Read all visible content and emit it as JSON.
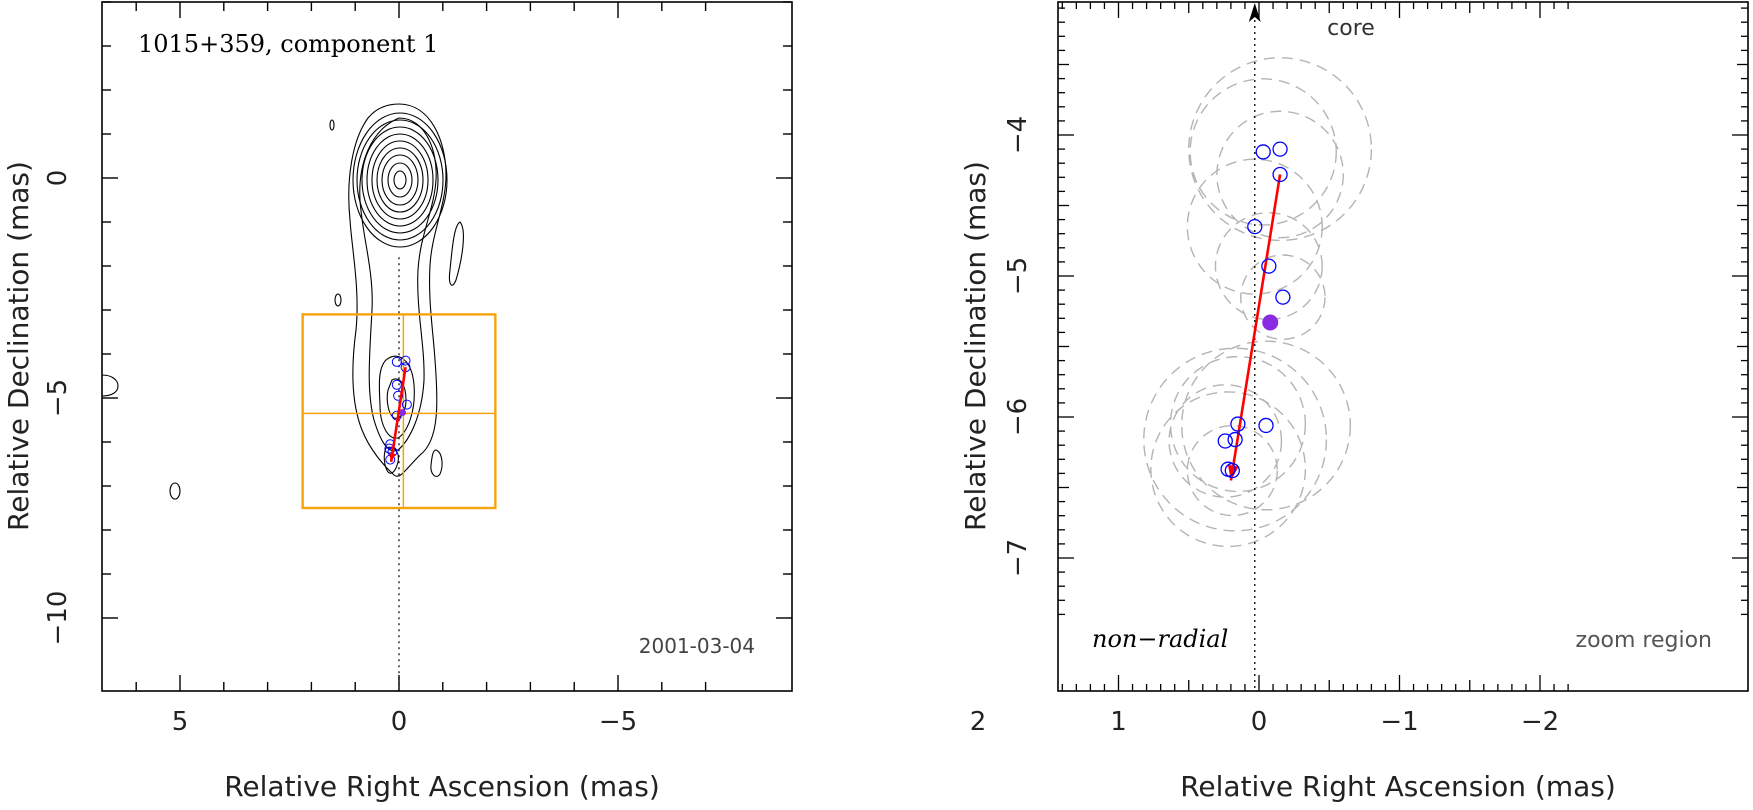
{
  "chart_data": [
    {
      "type": "contour",
      "title": "1015+359, component 1",
      "date": "2001-03-04",
      "xlabel": "Relative Right Ascension (mas)",
      "ylabel": "Relative Declination (mas)",
      "xlim": [
        7,
        -7
      ],
      "ylim": [
        -10,
        4
      ],
      "xticks": [
        5,
        0,
        -5
      ],
      "xtick_labels": [
        "5",
        "0",
        "−5"
      ],
      "yticks": [
        0,
        -5,
        -10
      ],
      "ytick_labels": [
        "0",
        "−5",
        "−10"
      ],
      "contour_center": [
        0,
        0
      ],
      "contour_levels": 10,
      "components": [
        {
          "x": 0.05,
          "y": -4.18
        },
        {
          "x": -0.15,
          "y": -4.15
        },
        {
          "x": -0.15,
          "y": -4.3
        },
        {
          "x": 0.05,
          "y": -4.7
        },
        {
          "x": 0.02,
          "y": -4.95
        },
        {
          "x": -0.18,
          "y": -5.15
        },
        {
          "x": 0.05,
          "y": -5.4
        },
        {
          "x": 0.2,
          "y": -6.05
        },
        {
          "x": 0.22,
          "y": -6.15
        },
        {
          "x": 0.15,
          "y": -6.22
        },
        {
          "x": 0.2,
          "y": -6.4
        }
      ],
      "highlight_component": {
        "x": -0.08,
        "y": -5.33
      },
      "motion_vector": {
        "from": [
          -0.15,
          -4.3
        ],
        "to": [
          0.18,
          -6.45
        ]
      },
      "zoom_box": {
        "x": [
          2.2,
          -2.2
        ],
        "y": [
          -3.1,
          -7.5
        ],
        "cross": {
          "x": -0.1,
          "y": -5.35
        }
      },
      "core_direction_line": {
        "x": 0
      }
    },
    {
      "type": "scatter",
      "title": "",
      "annotations": [
        "core",
        "non−radial",
        "zoom region"
      ],
      "xlabel": "Relative Right Ascension (mas)",
      "ylabel": "Relative Declination (mas)",
      "xlim": [
        2.25,
        -2.1
      ],
      "ylim": [
        -7.45,
        -3.0
      ],
      "xticks": [
        2,
        1,
        0,
        -1,
        -2
      ],
      "xtick_labels": [
        "2",
        "1",
        "0",
        "−1",
        "−2"
      ],
      "yticks": [
        -4,
        -5,
        -6,
        -7
      ],
      "ytick_labels": [
        "−4",
        "−5",
        "−6",
        "−7"
      ],
      "series": [
        {
          "marker": "open-circle",
          "color": "#0000ff",
          "points": [
            {
              "x": -0.03,
              "y": -4.12
            },
            {
              "x": -0.15,
              "y": -4.1
            },
            {
              "x": -0.15,
              "y": -4.28
            },
            {
              "x": 0.03,
              "y": -4.65
            },
            {
              "x": -0.07,
              "y": -4.93
            },
            {
              "x": -0.17,
              "y": -5.15
            },
            {
              "x": -0.05,
              "y": -6.06
            },
            {
              "x": 0.15,
              "y": -6.05
            },
            {
              "x": 0.17,
              "y": -6.16
            },
            {
              "x": 0.24,
              "y": -6.17
            },
            {
              "x": 0.22,
              "y": -6.37
            },
            {
              "x": 0.19,
              "y": -6.38
            }
          ]
        },
        {
          "marker": "filled-circle",
          "color": "#8a2be2",
          "points": [
            {
              "x": -0.08,
              "y": -5.33
            }
          ]
        }
      ],
      "uncertainty_circles": [
        {
          "x": -0.03,
          "y": -4.12,
          "r": 0.52
        },
        {
          "x": -0.15,
          "y": -4.1,
          "r": 0.65
        },
        {
          "x": -0.15,
          "y": -4.28,
          "r": 0.45
        },
        {
          "x": 0.03,
          "y": -4.65,
          "r": 0.48
        },
        {
          "x": -0.07,
          "y": -4.93,
          "r": 0.38
        },
        {
          "x": -0.17,
          "y": -5.15,
          "r": 0.3
        },
        {
          "x": -0.05,
          "y": -6.06,
          "r": 0.6
        },
        {
          "x": 0.15,
          "y": -6.05,
          "r": 0.48
        },
        {
          "x": 0.17,
          "y": -6.16,
          "r": 0.65
        },
        {
          "x": 0.24,
          "y": -6.17,
          "r": 0.4
        },
        {
          "x": 0.22,
          "y": -6.37,
          "r": 0.55
        },
        {
          "x": 0.19,
          "y": -6.38,
          "r": 0.32
        }
      ],
      "motion_vector": {
        "from": [
          -0.15,
          -4.28
        ],
        "to": [
          0.2,
          -6.45
        ]
      },
      "core_direction_line": {
        "x": 0.03
      },
      "grid": false
    }
  ],
  "colors": {
    "box": "#f5a30a",
    "vector": "#ff0000",
    "components": "#0000ff",
    "highlight": "#8a2be2",
    "dashed_circles": "#b4b4b4"
  }
}
